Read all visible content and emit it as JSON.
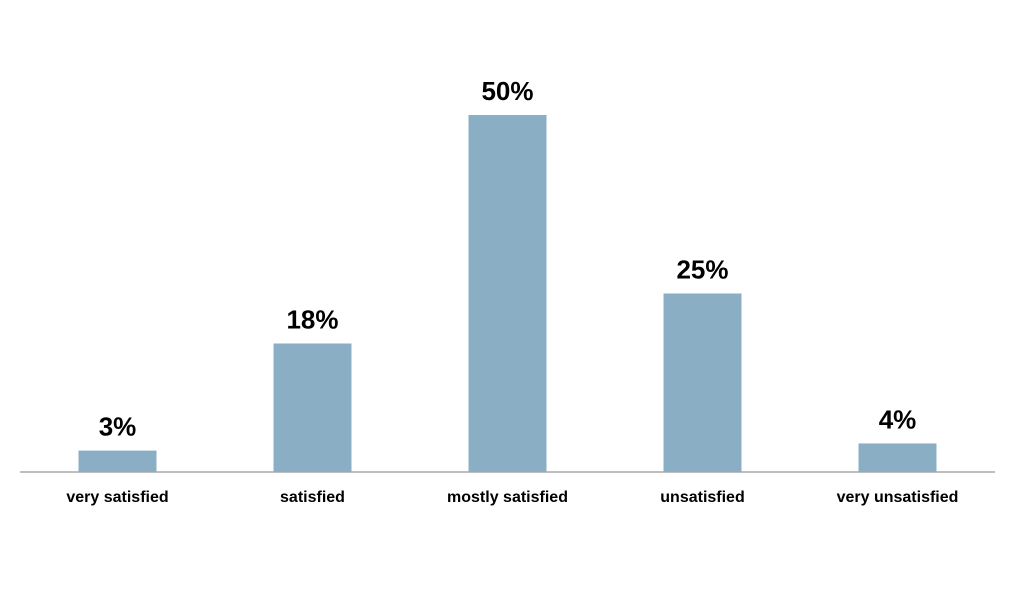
{
  "chart_data": {
    "type": "bar",
    "categories": [
      "very satisfied",
      "satisfied",
      "mostly satisfied",
      "unsatisfied",
      "very unsatisfied"
    ],
    "values": [
      3,
      18,
      50,
      25,
      4
    ],
    "value_labels": [
      "3%",
      "18%",
      "50%",
      "25%",
      "4%"
    ],
    "color": "#8aafc5"
  }
}
